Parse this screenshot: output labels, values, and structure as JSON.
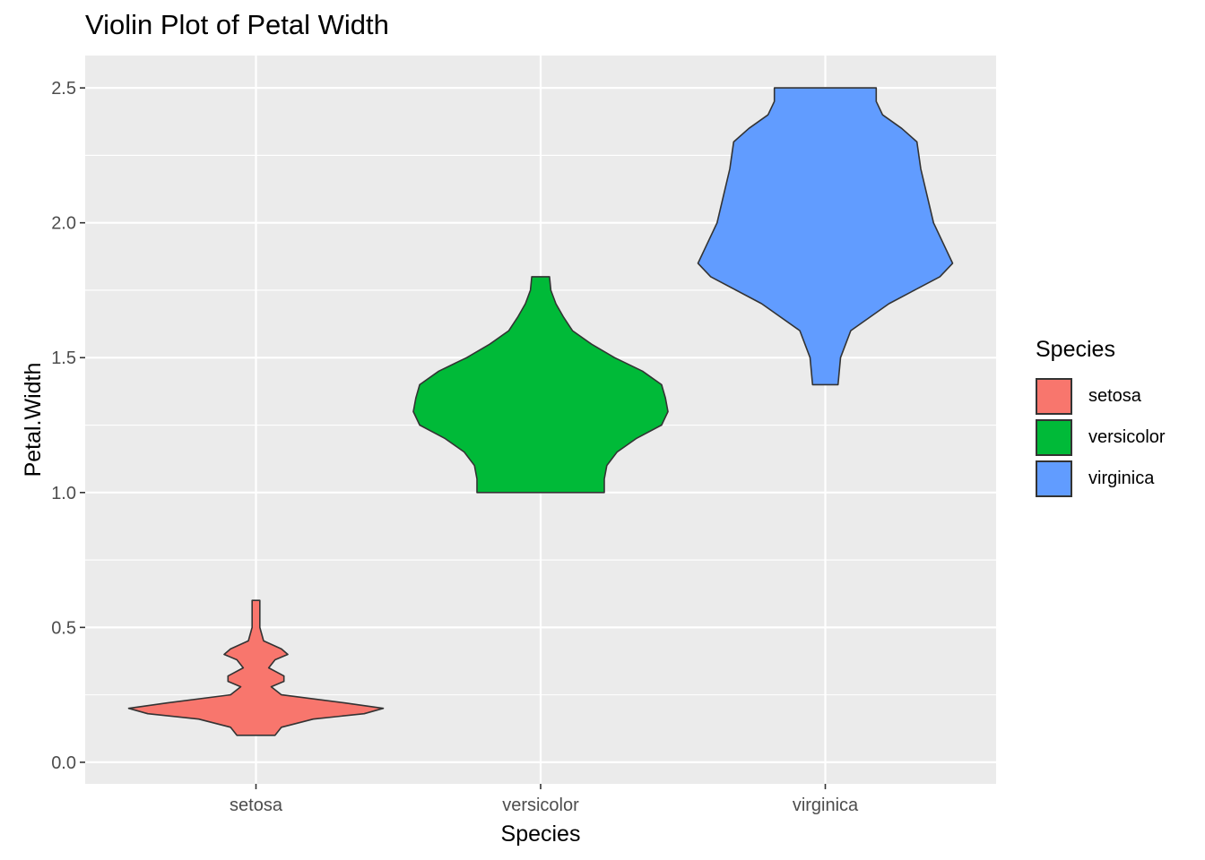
{
  "chart_data": {
    "type": "violin",
    "title": "Violin Plot of Petal Width",
    "xlabel": "Species",
    "ylabel": "Petal.Width",
    "ylim": [
      0,
      2.5
    ],
    "yticks": [
      "0.0",
      "0.5",
      "1.0",
      "1.5",
      "2.0",
      "2.5"
    ],
    "ytick_values": [
      0,
      0.5,
      1.0,
      1.5,
      2.0,
      2.5
    ],
    "categories": [
      "setosa",
      "versicolor",
      "virginica"
    ],
    "grid": true,
    "legend_position": "right",
    "legend_title": "Species",
    "series": [
      {
        "name": "setosa",
        "color": "#F8766D",
        "range": [
          0.1,
          0.6
        ],
        "density": [
          [
            0.1,
            0.15
          ],
          [
            0.13,
            0.2
          ],
          [
            0.16,
            0.45
          ],
          [
            0.18,
            0.85
          ],
          [
            0.2,
            1.0
          ],
          [
            0.22,
            0.7
          ],
          [
            0.25,
            0.2
          ],
          [
            0.28,
            0.12
          ],
          [
            0.3,
            0.22
          ],
          [
            0.32,
            0.22
          ],
          [
            0.35,
            0.1
          ],
          [
            0.38,
            0.15
          ],
          [
            0.4,
            0.25
          ],
          [
            0.42,
            0.2
          ],
          [
            0.45,
            0.06
          ],
          [
            0.5,
            0.03
          ],
          [
            0.55,
            0.03
          ],
          [
            0.6,
            0.03
          ]
        ]
      },
      {
        "name": "versicolor",
        "color": "#00BA38",
        "range": [
          1.0,
          1.8
        ],
        "density": [
          [
            1.0,
            0.5
          ],
          [
            1.05,
            0.5
          ],
          [
            1.1,
            0.52
          ],
          [
            1.15,
            0.6
          ],
          [
            1.2,
            0.75
          ],
          [
            1.25,
            0.95
          ],
          [
            1.3,
            1.0
          ],
          [
            1.35,
            0.98
          ],
          [
            1.4,
            0.95
          ],
          [
            1.45,
            0.8
          ],
          [
            1.5,
            0.58
          ],
          [
            1.55,
            0.4
          ],
          [
            1.6,
            0.25
          ],
          [
            1.65,
            0.18
          ],
          [
            1.7,
            0.12
          ],
          [
            1.75,
            0.08
          ],
          [
            1.8,
            0.07
          ]
        ]
      },
      {
        "name": "virginica",
        "color": "#619CFF",
        "range": [
          1.4,
          2.5
        ],
        "density": [
          [
            1.4,
            0.1
          ],
          [
            1.5,
            0.12
          ],
          [
            1.6,
            0.2
          ],
          [
            1.7,
            0.5
          ],
          [
            1.8,
            0.9
          ],
          [
            1.85,
            1.0
          ],
          [
            1.9,
            0.95
          ],
          [
            2.0,
            0.85
          ],
          [
            2.1,
            0.8
          ],
          [
            2.2,
            0.75
          ],
          [
            2.3,
            0.72
          ],
          [
            2.35,
            0.6
          ],
          [
            2.4,
            0.45
          ],
          [
            2.45,
            0.4
          ],
          [
            2.5,
            0.4
          ]
        ]
      }
    ]
  }
}
